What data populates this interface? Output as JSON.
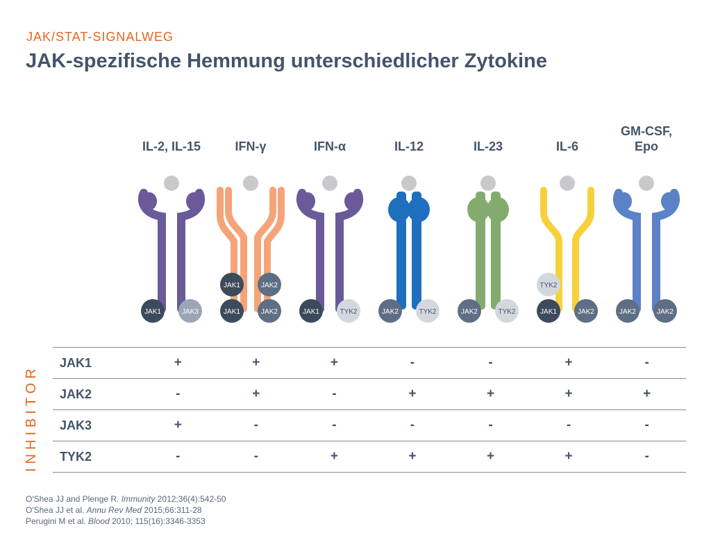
{
  "header": {
    "subtitle": "JAK/STAT-SIGNALWEG",
    "title": "JAK-spezifische Hemmung unterschiedlicher Zytokine"
  },
  "colors": {
    "accent": "#e8641e",
    "text": "#44546a",
    "ligand": "#c9c9cc"
  },
  "cytokines": [
    {
      "name": "IL-2, IL-15",
      "shape": "curved",
      "left_color": "#6a5a9a",
      "right_color": "#6a5a9a",
      "kinases": [
        {
          "label": "JAK1",
          "tone": "dark"
        },
        {
          "label": "JAK3",
          "tone": "mid"
        }
      ]
    },
    {
      "name": "IFN-γ",
      "shape": "double",
      "left_color": "#f5a47a",
      "right_color": "#f5a47a",
      "upper_kinases": [
        {
          "label": "JAK1",
          "tone": "dark"
        },
        {
          "label": "JAK2",
          "tone": "slate"
        }
      ],
      "kinases": [
        {
          "label": "JAK1",
          "tone": "dark"
        },
        {
          "label": "JAK2",
          "tone": "slate"
        }
      ]
    },
    {
      "name": "IFN-α",
      "shape": "curved",
      "left_color": "#6a5a9a",
      "right_color": "#6a5a9a",
      "kinases": [
        {
          "label": "JAK1",
          "tone": "dark"
        },
        {
          "label": "TYK2",
          "tone": "light"
        }
      ]
    },
    {
      "name": "IL-12",
      "shape": "straight",
      "left_color": "#1f6fbf",
      "right_color": "#1f6fbf",
      "kinases": [
        {
          "label": "JAK2",
          "tone": "slate"
        },
        {
          "label": "TYK2",
          "tone": "light"
        }
      ]
    },
    {
      "name": "IL-23",
      "shape": "straight",
      "left_color": "#84ab6f",
      "right_color": "#84ab6f",
      "kinases": [
        {
          "label": "JAK2",
          "tone": "slate"
        },
        {
          "label": "TYK2",
          "tone": "light"
        }
      ]
    },
    {
      "name": "IL-6",
      "shape": "yshape",
      "left_color": "#f6d13c",
      "right_color": "#f6d13c",
      "upper_kinases": [
        {
          "label": "TYK2",
          "tone": "light"
        }
      ],
      "kinases": [
        {
          "label": "JAK1",
          "tone": "dark"
        },
        {
          "label": "JAK2",
          "tone": "slate"
        }
      ]
    },
    {
      "name": "GM-CSF,\nEpo",
      "name_lines": [
        "GM-CSF,",
        "Epo"
      ],
      "shape": "curved-short",
      "left_color": "#5b82c7",
      "right_color": "#5b82c7",
      "kinases": [
        {
          "label": "JAK2",
          "tone": "slate"
        },
        {
          "label": "JAK2",
          "tone": "slate"
        }
      ]
    }
  ],
  "kinase_tones": {
    "dark": {
      "fill": "#3d4a5c",
      "text": "#ffffff"
    },
    "slate": {
      "fill": "#5e6f85",
      "text": "#ffffff"
    },
    "mid": {
      "fill": "#9aa6b6",
      "text": "#ffffff"
    },
    "light": {
      "fill": "#d3d8df",
      "text": "#44546a"
    }
  },
  "inhibitor_label": "INHIBITOR",
  "matrix": {
    "rows": [
      {
        "label": "JAK1",
        "values": [
          "+",
          "+",
          "+",
          "-",
          "-",
          "+",
          "-"
        ]
      },
      {
        "label": "JAK2",
        "values": [
          "-",
          "+",
          "-",
          "+",
          "+",
          "+",
          "+"
        ]
      },
      {
        "label": "JAK3",
        "values": [
          "+",
          "-",
          "-",
          "-",
          "-",
          "-",
          "-"
        ]
      },
      {
        "label": "TYK2",
        "values": [
          "-",
          "-",
          "+",
          "+",
          "+",
          "+",
          "-"
        ]
      }
    ]
  },
  "references": [
    {
      "pre": "O'Shea JJ and Plenge R. ",
      "journal": "Immunity",
      "post": " 2012;36(4):542-50"
    },
    {
      "pre": "O'Shea JJ et al. ",
      "journal": "Annu Rev Med",
      "post": " 2015;66:311-28"
    },
    {
      "pre": "Perugini M et al. ",
      "journal": "Blood",
      "post": " 2010; 115(16):3346-3353"
    }
  ]
}
